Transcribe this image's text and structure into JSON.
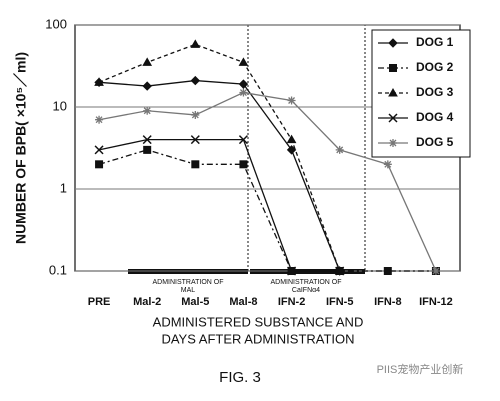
{
  "chart_data": {
    "type": "line",
    "y_label": "NUMBER OF BPB( ×10⁵／ml)",
    "x_label": [
      "ADMINISTERED SUBSTANCE AND",
      "DAYS AFTER ADMINISTRATION"
    ],
    "annotations": [
      [
        "ADMINISTRATION OF",
        "MAL"
      ],
      [
        "ADMINISTRATION OF",
        "CaIFNα4"
      ]
    ],
    "caption": "FIG. 3",
    "watermark": "PIIS宠物产业创新",
    "categories": [
      "PRE",
      "Mal-2",
      "Mal-5",
      "Mal-8",
      "IFN-2",
      "IFN-5",
      "IFN-8",
      "IFN-12"
    ],
    "series": [
      {
        "name": "DOG 1",
        "color": "#111111",
        "marker": "diamond",
        "dash": "none",
        "values": [
          20,
          18,
          21,
          19,
          3,
          0.1,
          null,
          null
        ]
      },
      {
        "name": "DOG 2",
        "color": "#111111",
        "marker": "square",
        "dash": "6 3 2 3",
        "values": [
          2,
          3,
          2,
          2,
          0.1,
          0.1,
          0.1,
          0.1
        ]
      },
      {
        "name": "DOG 3",
        "color": "#111111",
        "marker": "triangle",
        "dash": "4 3",
        "values": [
          20,
          35,
          58,
          35,
          4,
          0.1,
          null,
          null
        ]
      },
      {
        "name": "DOG 4",
        "color": "#111111",
        "marker": "cross",
        "dash": "none",
        "values": [
          3,
          4,
          4,
          4,
          0.1,
          0.1,
          null,
          null
        ]
      },
      {
        "name": "DOG 5",
        "color": "#777777",
        "marker": "star",
        "dash": "none",
        "values": [
          7,
          9,
          8,
          15,
          12,
          3,
          2,
          0.1
        ]
      }
    ],
    "ylim": [
      0.1,
      100
    ],
    "yticks": [
      0.1,
      1,
      10,
      100
    ],
    "log_y": true,
    "grid": true,
    "legend": "upper right"
  }
}
